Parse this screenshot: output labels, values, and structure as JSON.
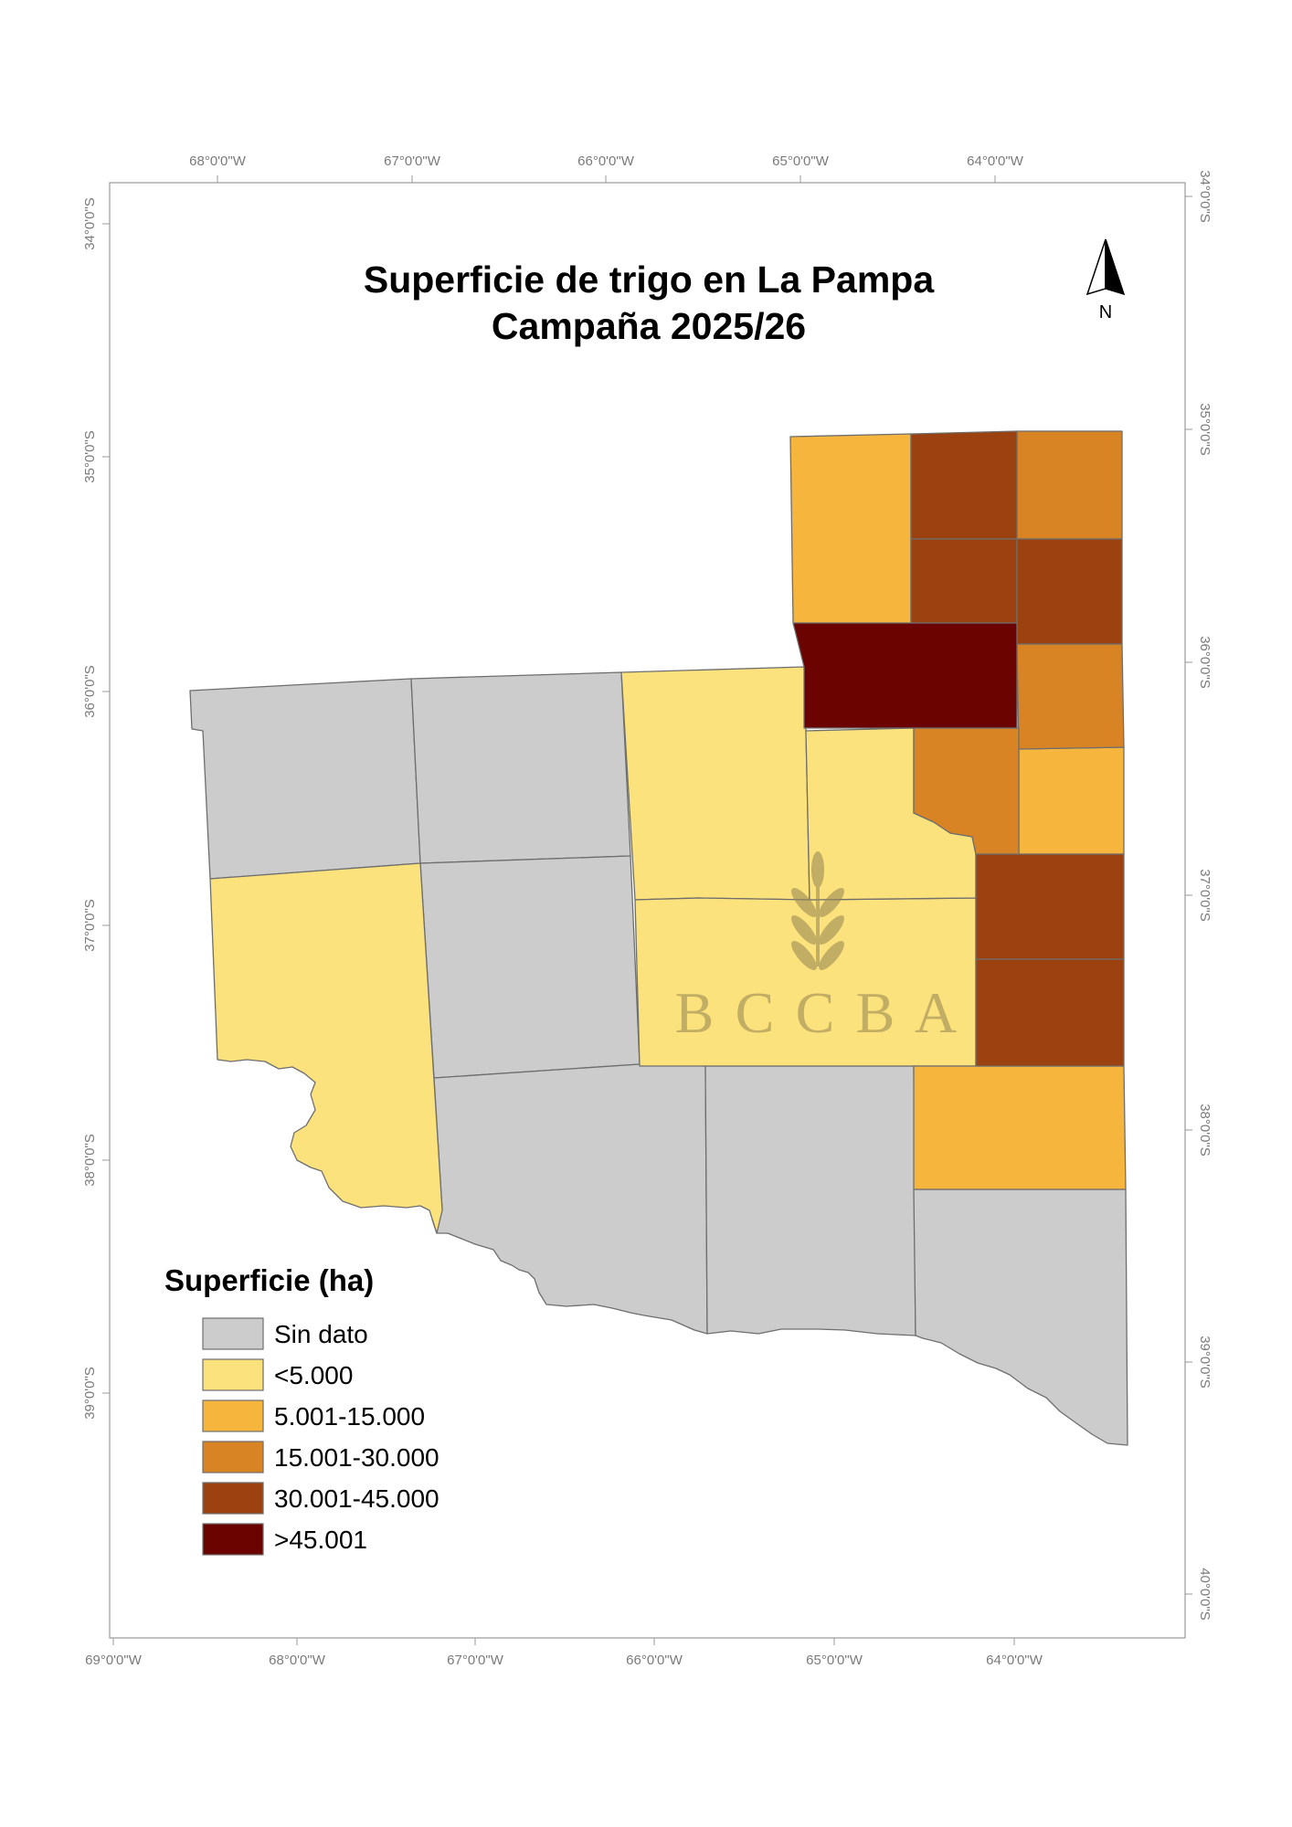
{
  "map": {
    "title_line1": "Superficie de trigo en La Pampa",
    "title_line2": "Campaña 2025/26",
    "north_label": "N",
    "graticule": {
      "top": [
        "68°0'0\"W",
        "67°0'0\"W",
        "66°0'0\"W",
        "65°0'0\"W",
        "64°0'0\"W"
      ],
      "bottom": [
        "69°0'0\"W",
        "68°0'0\"W",
        "67°0'0\"W",
        "66°0'0\"W",
        "65°0'0\"W",
        "64°0'0\"W"
      ],
      "left": [
        "34°0'0\"S",
        "35°0'0\"S",
        "36°0'0\"S",
        "37°0'0\"S",
        "38°0'0\"S",
        "39°0'0\"S"
      ],
      "right": [
        "34°0'0\"S",
        "35°0'0\"S",
        "36°0'0\"S",
        "37°0'0\"S",
        "38°0'0\"S",
        "39°0'0\"S",
        "40°0'0\"S"
      ]
    },
    "legend": {
      "title": "Superficie (ha)",
      "items": [
        {
          "label": "Sin dato",
          "color": "#cccccc"
        },
        {
          "label": "<5.000",
          "color": "#fbe27c"
        },
        {
          "label": "5.001-15.000",
          "color": "#f6b63e"
        },
        {
          "label": "15.001-30.000",
          "color": "#d88424"
        },
        {
          "label": "30.001-45.000",
          "color": "#9b4210"
        },
        {
          "label": ">45.001",
          "color": "#6b0400"
        }
      ]
    },
    "watermark": {
      "letters": [
        "B",
        "C",
        "C",
        "B",
        "A"
      ],
      "color": "#9c8a55"
    }
  }
}
